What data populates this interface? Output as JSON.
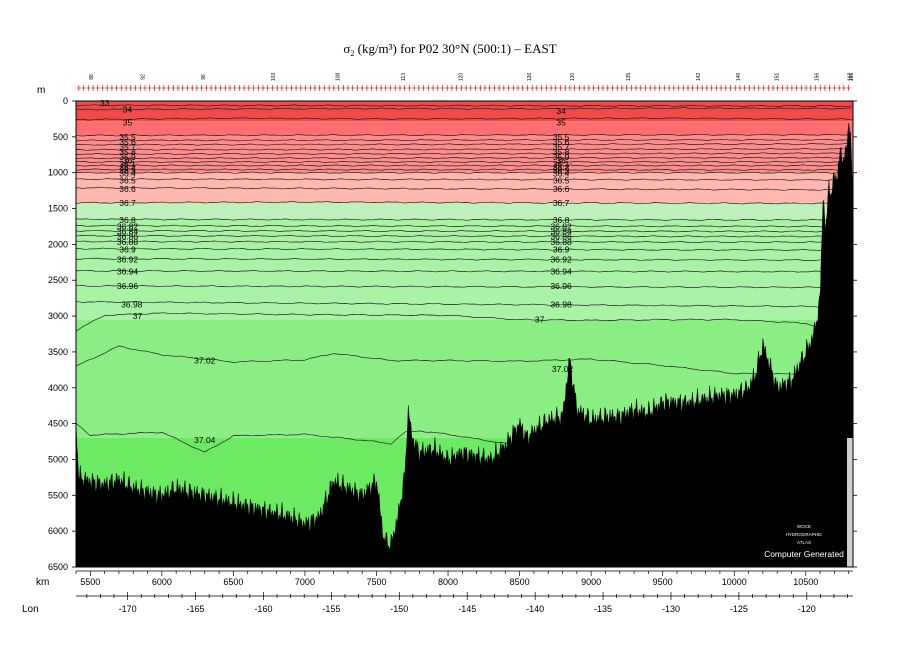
{
  "chart_data": {
    "type": "section",
    "title": "σ₂ (kg/m³) for P02 30°N (500:1) – EAST",
    "title_parts": {
      "symbol": "σ",
      "subscript": "2",
      "rest": " (kg/m³) for P02 30°N (500:1) – EAST"
    },
    "y_axis": {
      "label": "m",
      "range": [
        0,
        6500
      ],
      "inverted": true,
      "ticks": [
        0,
        500,
        1000,
        1500,
        2000,
        2500,
        3000,
        3500,
        4000,
        4500,
        5000,
        5500,
        6000,
        6500
      ]
    },
    "x_axis": {
      "label": "km",
      "range": [
        5400,
        10830
      ],
      "ticks": [
        5500,
        6000,
        6500,
        7000,
        7500,
        8000,
        8500,
        9000,
        9500,
        10000,
        10500
      ]
    },
    "lon_axis": {
      "label": "Lon",
      "lon_range": [
        -173.8,
        -116.6
      ],
      "ticks": [
        -170,
        -165,
        -160,
        -155,
        -150,
        -145,
        -140,
        -135,
        -130,
        -125,
        -120
      ]
    },
    "station_labels": [
      {
        "km": 5520,
        "text": "88"
      },
      {
        "km": 5880,
        "text": "92"
      },
      {
        "km": 6300,
        "text": "96"
      },
      {
        "km": 6790,
        "text": "103"
      },
      {
        "km": 7240,
        "text": "108"
      },
      {
        "km": 7700,
        "text": "113"
      },
      {
        "km": 8100,
        "text": "120"
      },
      {
        "km": 8580,
        "text": "126"
      },
      {
        "km": 8880,
        "text": "130"
      },
      {
        "km": 9270,
        "text": "135"
      },
      {
        "km": 9760,
        "text": "142"
      },
      {
        "km": 10040,
        "text": "146"
      },
      {
        "km": 10310,
        "text": "151"
      },
      {
        "km": 10590,
        "text": "156"
      },
      {
        "km": 10820,
        "text": "162"
      },
      {
        "km": 10900,
        "text": "165"
      }
    ],
    "contours": [
      {
        "level": "33",
        "km": [
          5400,
          10830
        ],
        "depth": [
          60,
          70
        ]
      },
      {
        "level": "34",
        "km": [
          5400,
          6500,
          7500,
          8500,
          9500,
          10830
        ],
        "depth": [
          120,
          110,
          105,
          110,
          100,
          105
        ]
      },
      {
        "level": "35",
        "km": [
          5400,
          6500,
          7500,
          8500,
          9500,
          10830
        ],
        "depth": [
          260,
          240,
          250,
          245,
          240,
          255
        ]
      },
      {
        "level": "35.5",
        "km": [
          5400,
          10830
        ],
        "depth": [
          480,
          470
        ]
      },
      {
        "level": "35.6",
        "km": [
          5400,
          10830
        ],
        "depth": [
          550,
          540
        ]
      },
      {
        "level": "35.7",
        "km": [
          5400,
          10830
        ],
        "depth": [
          610,
          600
        ]
      },
      {
        "level": "35.8",
        "km": [
          5400,
          10830
        ],
        "depth": [
          680,
          670
        ]
      },
      {
        "level": "35.9",
        "km": [
          5400,
          10830
        ],
        "depth": [
          740,
          730
        ]
      },
      {
        "level": "36",
        "km": [
          5400,
          10830
        ],
        "depth": [
          800,
          790
        ]
      },
      {
        "level": "36.1",
        "km": [
          5400,
          10830
        ],
        "depth": [
          850,
          850
        ]
      },
      {
        "level": "36.2",
        "km": [
          5400,
          10830
        ],
        "depth": [
          900,
          900
        ]
      },
      {
        "level": "36.3",
        "km": [
          5400,
          10830
        ],
        "depth": [
          955,
          960
        ]
      },
      {
        "level": "36.4",
        "km": [
          5400,
          10830
        ],
        "depth": [
          1000,
          1000
        ]
      },
      {
        "level": "36.5",
        "km": [
          5400,
          10830
        ],
        "depth": [
          1090,
          1100
        ]
      },
      {
        "level": "36.6",
        "km": [
          5400,
          10830
        ],
        "depth": [
          1210,
          1240
        ]
      },
      {
        "level": "36.7",
        "km": [
          5400,
          7000,
          8500,
          10830
        ],
        "depth": [
          1420,
          1410,
          1420,
          1430
        ]
      },
      {
        "level": "36.8",
        "km": [
          5400,
          10830
        ],
        "depth": [
          1650,
          1660
        ]
      },
      {
        "level": "36.82",
        "km": [
          5400,
          10830
        ],
        "depth": [
          1740,
          1750
        ]
      },
      {
        "level": "36.84",
        "km": [
          5400,
          10830
        ],
        "depth": [
          1810,
          1820
        ]
      },
      {
        "level": "36.86",
        "km": [
          5400,
          10830
        ],
        "depth": [
          1880,
          1890
        ]
      },
      {
        "level": "36.88",
        "km": [
          5400,
          10830
        ],
        "depth": [
          1960,
          1970
        ]
      },
      {
        "level": "36.9",
        "km": [
          5400,
          10830
        ],
        "depth": [
          2060,
          2080
        ]
      },
      {
        "level": "36.92",
        "km": [
          5400,
          10830
        ],
        "depth": [
          2200,
          2220
        ]
      },
      {
        "level": "36.94",
        "km": [
          5400,
          10830
        ],
        "depth": [
          2370,
          2380
        ]
      },
      {
        "level": "36.96",
        "km": [
          5400,
          10830
        ],
        "depth": [
          2580,
          2600
        ]
      },
      {
        "level": "36.98",
        "km": [
          5400,
          10830
        ],
        "depth": [
          2800,
          2870
        ]
      },
      {
        "level": "37",
        "km": [
          5400,
          5600,
          6000,
          7000,
          8000,
          8500,
          9000,
          9500,
          10000,
          10500,
          10830
        ],
        "depth": [
          3200,
          2990,
          2960,
          2980,
          2990,
          3050,
          3060,
          3050,
          3050,
          3100,
          3300
        ]
      },
      {
        "level": "37.02",
        "km": [
          5400,
          5700,
          6000,
          6500,
          7000,
          7200,
          7600,
          8000,
          8500,
          9000,
          9500,
          10000,
          10400,
          10650
        ],
        "depth": [
          3700,
          3420,
          3540,
          3640,
          3610,
          3520,
          3620,
          3620,
          3630,
          3600,
          3690,
          3800,
          3810,
          3700
        ]
      },
      {
        "level": "37.04",
        "km": [
          5400,
          5500,
          6000,
          6300,
          6500,
          7000,
          7400,
          7600,
          7700,
          7800,
          8000,
          8600
        ],
        "depth": [
          4500,
          4660,
          4620,
          4900,
          4670,
          4650,
          4730,
          4780,
          4620,
          4600,
          4650,
          4840
        ]
      }
    ],
    "contour_labels": [
      {
        "text": "33",
        "km": 5600,
        "depth": 30
      },
      {
        "text": "34",
        "km": 5760,
        "depth": 120
      },
      {
        "text": "34",
        "km": 8790,
        "depth": 140
      },
      {
        "text": "35",
        "km": 5760,
        "depth": 300
      },
      {
        "text": "35",
        "km": 8790,
        "depth": 300
      },
      {
        "text": "35.5",
        "km": 5760,
        "depth": 500
      },
      {
        "text": "35.5",
        "km": 8790,
        "depth": 500
      },
      {
        "text": "35.6",
        "km": 5760,
        "depth": 570
      },
      {
        "text": "35.6",
        "km": 8790,
        "depth": 570
      },
      {
        "text": "35.7",
        "km": 5760,
        "depth": 640
      },
      {
        "text": "35.7",
        "km": 8790,
        "depth": 640
      },
      {
        "text": "35.8",
        "km": 5760,
        "depth": 710
      },
      {
        "text": "35.8",
        "km": 8790,
        "depth": 710
      },
      {
        "text": "35.9",
        "km": 5760,
        "depth": 780
      },
      {
        "text": "35.9",
        "km": 8790,
        "depth": 780
      },
      {
        "text": "36",
        "km": 5760,
        "depth": 830
      },
      {
        "text": "36",
        "km": 8790,
        "depth": 830
      },
      {
        "text": "36.1",
        "km": 5760,
        "depth": 880
      },
      {
        "text": "36.1",
        "km": 8790,
        "depth": 880
      },
      {
        "text": "36.2",
        "km": 5760,
        "depth": 930
      },
      {
        "text": "36.2",
        "km": 8790,
        "depth": 930
      },
      {
        "text": "36.3",
        "km": 5760,
        "depth": 970
      },
      {
        "text": "36.3",
        "km": 8790,
        "depth": 970
      },
      {
        "text": "36.4",
        "km": 5760,
        "depth": 1010
      },
      {
        "text": "36.4",
        "km": 8790,
        "depth": 1010
      },
      {
        "text": "36.5",
        "km": 5760,
        "depth": 1110
      },
      {
        "text": "36.5",
        "km": 8790,
        "depth": 1110
      },
      {
        "text": "36.6",
        "km": 5760,
        "depth": 1230
      },
      {
        "text": "36.6",
        "km": 8790,
        "depth": 1230
      },
      {
        "text": "36.7",
        "km": 5760,
        "depth": 1420
      },
      {
        "text": "36.7",
        "km": 8790,
        "depth": 1420
      },
      {
        "text": "36.8",
        "km": 5760,
        "depth": 1660
      },
      {
        "text": "36.8",
        "km": 8790,
        "depth": 1660
      },
      {
        "text": "36.82",
        "km": 5760,
        "depth": 1750
      },
      {
        "text": "36.82",
        "km": 8790,
        "depth": 1750
      },
      {
        "text": "36.84",
        "km": 5760,
        "depth": 1820
      },
      {
        "text": "36.84",
        "km": 8790,
        "depth": 1820
      },
      {
        "text": "36.86",
        "km": 5760,
        "depth": 1890
      },
      {
        "text": "36.86",
        "km": 8790,
        "depth": 1890
      },
      {
        "text": "36.88",
        "km": 5760,
        "depth": 1970
      },
      {
        "text": "36.88",
        "km": 8790,
        "depth": 1970
      },
      {
        "text": "36.9",
        "km": 5760,
        "depth": 2070
      },
      {
        "text": "36.9",
        "km": 8790,
        "depth": 2070
      },
      {
        "text": "36.92",
        "km": 5760,
        "depth": 2210
      },
      {
        "text": "36.92",
        "km": 8790,
        "depth": 2210
      },
      {
        "text": "36.94",
        "km": 5760,
        "depth": 2380
      },
      {
        "text": "36.94",
        "km": 8790,
        "depth": 2380
      },
      {
        "text": "36.96",
        "km": 5760,
        "depth": 2580
      },
      {
        "text": "36.96",
        "km": 8790,
        "depth": 2580
      },
      {
        "text": "36.98",
        "km": 5790,
        "depth": 2840
      },
      {
        "text": "36.98",
        "km": 8790,
        "depth": 2840
      },
      {
        "text": "37",
        "km": 5830,
        "depth": 3000
      },
      {
        "text": "37",
        "km": 8640,
        "depth": 3050
      },
      {
        "text": "37.02",
        "km": 6300,
        "depth": 3620
      },
      {
        "text": "37.02",
        "km": 8800,
        "depth": 3740
      },
      {
        "text": "37.04",
        "km": 6300,
        "depth": 4730
      },
      {
        "text": "37.04",
        "km": 8500,
        "depth": 4930
      }
    ],
    "bands": [
      {
        "from": 0,
        "to": 280,
        "color": "#f24a4a"
      },
      {
        "from": 280,
        "to": 480,
        "color": "#ff6f6f"
      },
      {
        "from": 480,
        "to": 1000,
        "color": "#ff8c8c"
      },
      {
        "from": 1000,
        "to": 1420,
        "color": "#ffb8b0"
      },
      {
        "from": 1420,
        "to": 1650,
        "color": "#bff2bb"
      },
      {
        "from": 1650,
        "to": 3050,
        "color": "#a9f2a6"
      },
      {
        "from": 3050,
        "to": 4700,
        "color": "#8bee85"
      },
      {
        "from": 4700,
        "to": 6500,
        "color": "#6cea63"
      }
    ],
    "bathymetry": {
      "km": [
        5400,
        5420,
        5500,
        5600,
        5700,
        5800,
        5900,
        6000,
        6100,
        6200,
        6300,
        6400,
        6500,
        6600,
        6700,
        6800,
        6900,
        7000,
        7100,
        7200,
        7300,
        7400,
        7500,
        7550,
        7600,
        7650,
        7700,
        7720,
        7750,
        7800,
        7900,
        8000,
        8100,
        8200,
        8300,
        8400,
        8500,
        8550,
        8600,
        8700,
        8800,
        8850,
        8900,
        9000,
        9100,
        9200,
        9300,
        9400,
        9500,
        9600,
        9700,
        9800,
        9900,
        10000,
        10100,
        10150,
        10200,
        10300,
        10400,
        10450,
        10500,
        10550,
        10600,
        10620,
        10640,
        10660,
        10680,
        10700,
        10720,
        10740,
        10760,
        10780,
        10800,
        10820,
        10830
      ],
      "depth": [
        4500,
        5250,
        5300,
        5350,
        5280,
        5400,
        5450,
        5500,
        5400,
        5450,
        5500,
        5550,
        5600,
        5650,
        5700,
        5750,
        5800,
        5900,
        5800,
        5300,
        5400,
        5500,
        5300,
        6100,
        6200,
        5800,
        5200,
        4300,
        4700,
        4900,
        4850,
        5000,
        4900,
        4950,
        5000,
        4800,
        4500,
        4700,
        4600,
        4450,
        4400,
        3600,
        4300,
        4450,
        4400,
        4400,
        4300,
        4350,
        4200,
        4200,
        4200,
        4150,
        4100,
        4100,
        4000,
        3800,
        3400,
        4000,
        3900,
        3700,
        3500,
        3300,
        2800,
        1300,
        1900,
        1100,
        1400,
        900,
        1200,
        600,
        900,
        700,
        300,
        800,
        1100
      ]
    },
    "bottom_stamp": "Computer Generated",
    "stamp_small_lines": [
      "WOCE",
      "HYDROGRAPHIC",
      "ATLAS"
    ],
    "grid": false,
    "legend": "none"
  }
}
